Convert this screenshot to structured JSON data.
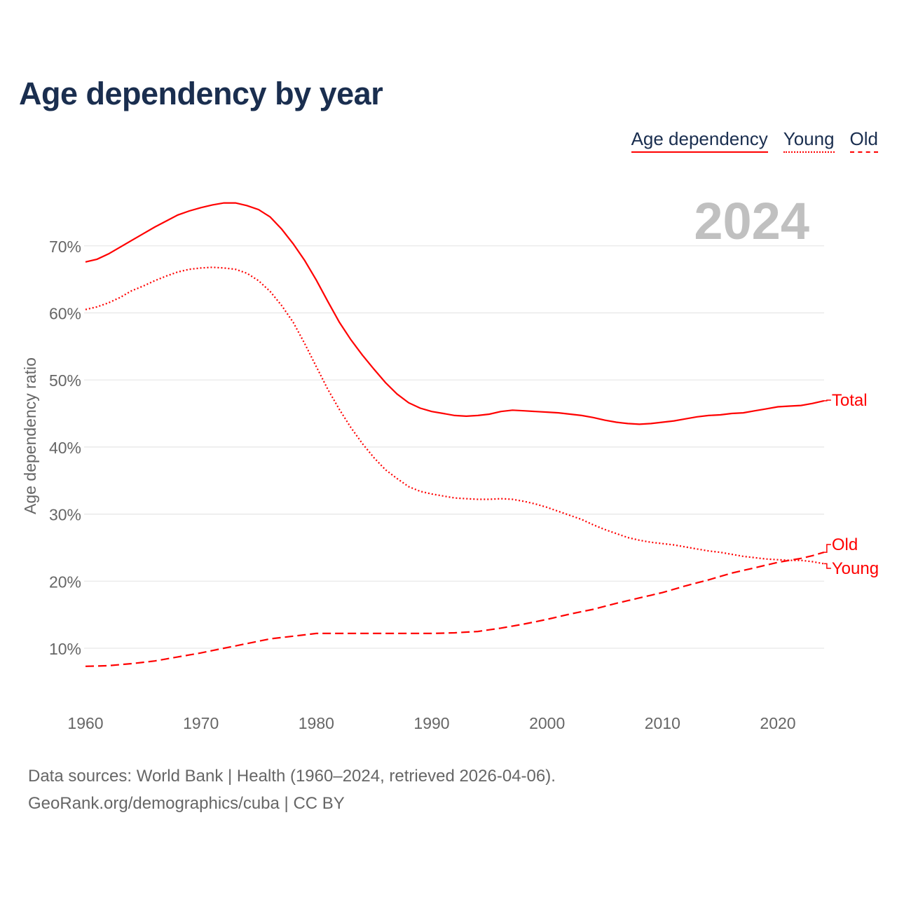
{
  "chart_data": {
    "type": "line",
    "title": "Age dependency by year",
    "ylabel": "Age dependency ratio",
    "xlabel": "",
    "xlim": [
      1960,
      2024
    ],
    "ylim": [
      0,
      80
    ],
    "grid": true,
    "year_label": "2024",
    "x_ticks": [
      "1960",
      "1970",
      "1980",
      "1990",
      "2000",
      "2010",
      "2020"
    ],
    "y_ticks": [
      {
        "value": 10,
        "label": "10%"
      },
      {
        "value": 20,
        "label": "20%"
      },
      {
        "value": 30,
        "label": "30%"
      },
      {
        "value": 40,
        "label": "40%"
      },
      {
        "value": 50,
        "label": "50%"
      },
      {
        "value": 60,
        "label": "60%"
      },
      {
        "value": 70,
        "label": "70%"
      }
    ],
    "legend": {
      "placement": "top-right",
      "entries": [
        "Age dependency",
        "Young",
        "Old"
      ]
    },
    "x": [
      1960,
      1961,
      1962,
      1963,
      1964,
      1965,
      1966,
      1967,
      1968,
      1969,
      1970,
      1971,
      1972,
      1973,
      1974,
      1975,
      1976,
      1977,
      1978,
      1979,
      1980,
      1981,
      1982,
      1983,
      1984,
      1985,
      1986,
      1987,
      1988,
      1989,
      1990,
      1991,
      1992,
      1993,
      1994,
      1995,
      1996,
      1997,
      1998,
      1999,
      2000,
      2001,
      2002,
      2003,
      2004,
      2005,
      2006,
      2007,
      2008,
      2009,
      2010,
      2011,
      2012,
      2013,
      2014,
      2015,
      2016,
      2017,
      2018,
      2019,
      2020,
      2021,
      2022,
      2023,
      2024
    ],
    "series": [
      {
        "name": "Total",
        "style": "solid",
        "values": [
          67.6,
          68.0,
          68.8,
          69.8,
          70.8,
          71.8,
          72.8,
          73.7,
          74.6,
          75.2,
          75.7,
          76.1,
          76.4,
          76.4,
          76.0,
          75.4,
          74.3,
          72.5,
          70.3,
          67.8,
          64.9,
          61.7,
          58.6,
          56.0,
          53.7,
          51.6,
          49.6,
          47.9,
          46.6,
          45.8,
          45.3,
          45.0,
          44.7,
          44.6,
          44.7,
          44.9,
          45.3,
          45.5,
          45.4,
          45.3,
          45.2,
          45.1,
          44.9,
          44.7,
          44.4,
          44.0,
          43.7,
          43.5,
          43.4,
          43.5,
          43.7,
          43.9,
          44.2,
          44.5,
          44.7,
          44.8,
          45.0,
          45.1,
          45.4,
          45.7,
          46.0,
          46.1,
          46.2,
          46.5,
          46.9
        ]
      },
      {
        "name": "Young",
        "style": "dotted",
        "values": [
          60.5,
          60.9,
          61.5,
          62.3,
          63.3,
          64.0,
          64.8,
          65.5,
          66.1,
          66.5,
          66.7,
          66.8,
          66.7,
          66.5,
          65.9,
          64.8,
          63.2,
          61.1,
          58.6,
          55.4,
          52.0,
          48.6,
          45.6,
          42.9,
          40.5,
          38.4,
          36.6,
          35.3,
          34.1,
          33.4,
          33.0,
          32.7,
          32.4,
          32.3,
          32.2,
          32.2,
          32.3,
          32.2,
          31.9,
          31.5,
          31.0,
          30.4,
          29.8,
          29.2,
          28.4,
          27.7,
          27.1,
          26.5,
          26.1,
          25.8,
          25.6,
          25.4,
          25.1,
          24.8,
          24.5,
          24.3,
          24.0,
          23.7,
          23.5,
          23.3,
          23.2,
          23.1,
          23.1,
          22.9,
          22.6
        ]
      },
      {
        "name": "Old",
        "style": "dashed",
        "values": [
          7.3,
          7.35,
          7.4,
          7.55,
          7.7,
          7.9,
          8.1,
          8.4,
          8.7,
          9.0,
          9.3,
          9.65,
          10.0,
          10.35,
          10.7,
          11.05,
          11.4,
          11.6,
          11.8,
          12.0,
          12.2,
          12.2,
          12.2,
          12.2,
          12.2,
          12.2,
          12.2,
          12.2,
          12.2,
          12.2,
          12.2,
          12.25,
          12.3,
          12.4,
          12.5,
          12.75,
          13.0,
          13.3,
          13.6,
          13.95,
          14.3,
          14.7,
          15.1,
          15.45,
          15.8,
          16.25,
          16.7,
          17.1,
          17.5,
          17.9,
          18.3,
          18.8,
          19.3,
          19.75,
          20.2,
          20.7,
          21.2,
          21.6,
          22.0,
          22.4,
          22.8,
          23.1,
          23.4,
          23.8,
          24.3
        ]
      }
    ]
  },
  "source": {
    "line1": "Data sources: World Bank | Health (1960–2024, retrieved 2026-04-06).",
    "line2": "GeoRank.org/demographics/cuba | CC BY"
  },
  "colors": {
    "line": "#ff0000",
    "title": "#1a2e4f",
    "grid": "#e6e6e6",
    "axis_text": "#666666",
    "year": "#c0c0c0"
  }
}
